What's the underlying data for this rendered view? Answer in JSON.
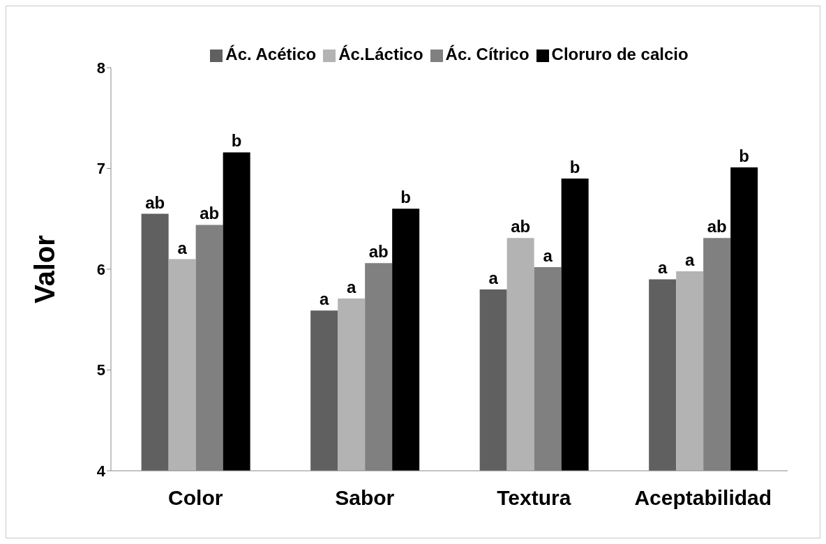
{
  "chart_data": {
    "type": "bar",
    "ylabel": "Valor",
    "categories": [
      "Color",
      "Sabor",
      "Textura",
      "Aceptabilidad"
    ],
    "ylim": [
      4,
      8
    ],
    "yticks": [
      4,
      5,
      6,
      7,
      8
    ],
    "grid": false,
    "legend": "top",
    "series": [
      {
        "name": "Ác. Acético",
        "color": "#606060",
        "values": [
          6.55,
          5.59,
          5.8,
          5.9
        ],
        "value_labels": [
          "ab",
          "a",
          "a",
          "a"
        ]
      },
      {
        "name": "Ác.Láctico",
        "color": "#b3b3b3",
        "values": [
          6.1,
          5.71,
          6.31,
          5.98
        ],
        "value_labels": [
          "a",
          "a",
          "ab",
          "a"
        ]
      },
      {
        "name": "Ác. Cítrico",
        "color": "#808080",
        "values": [
          6.44,
          6.06,
          6.02,
          6.31
        ],
        "value_labels": [
          "ab",
          "ab",
          "a",
          "ab"
        ]
      },
      {
        "name": "Cloruro de calcio",
        "color": "#000000",
        "values": [
          7.16,
          6.6,
          6.9,
          7.01
        ],
        "value_labels": [
          "b",
          "b",
          "b",
          "b"
        ]
      }
    ]
  }
}
